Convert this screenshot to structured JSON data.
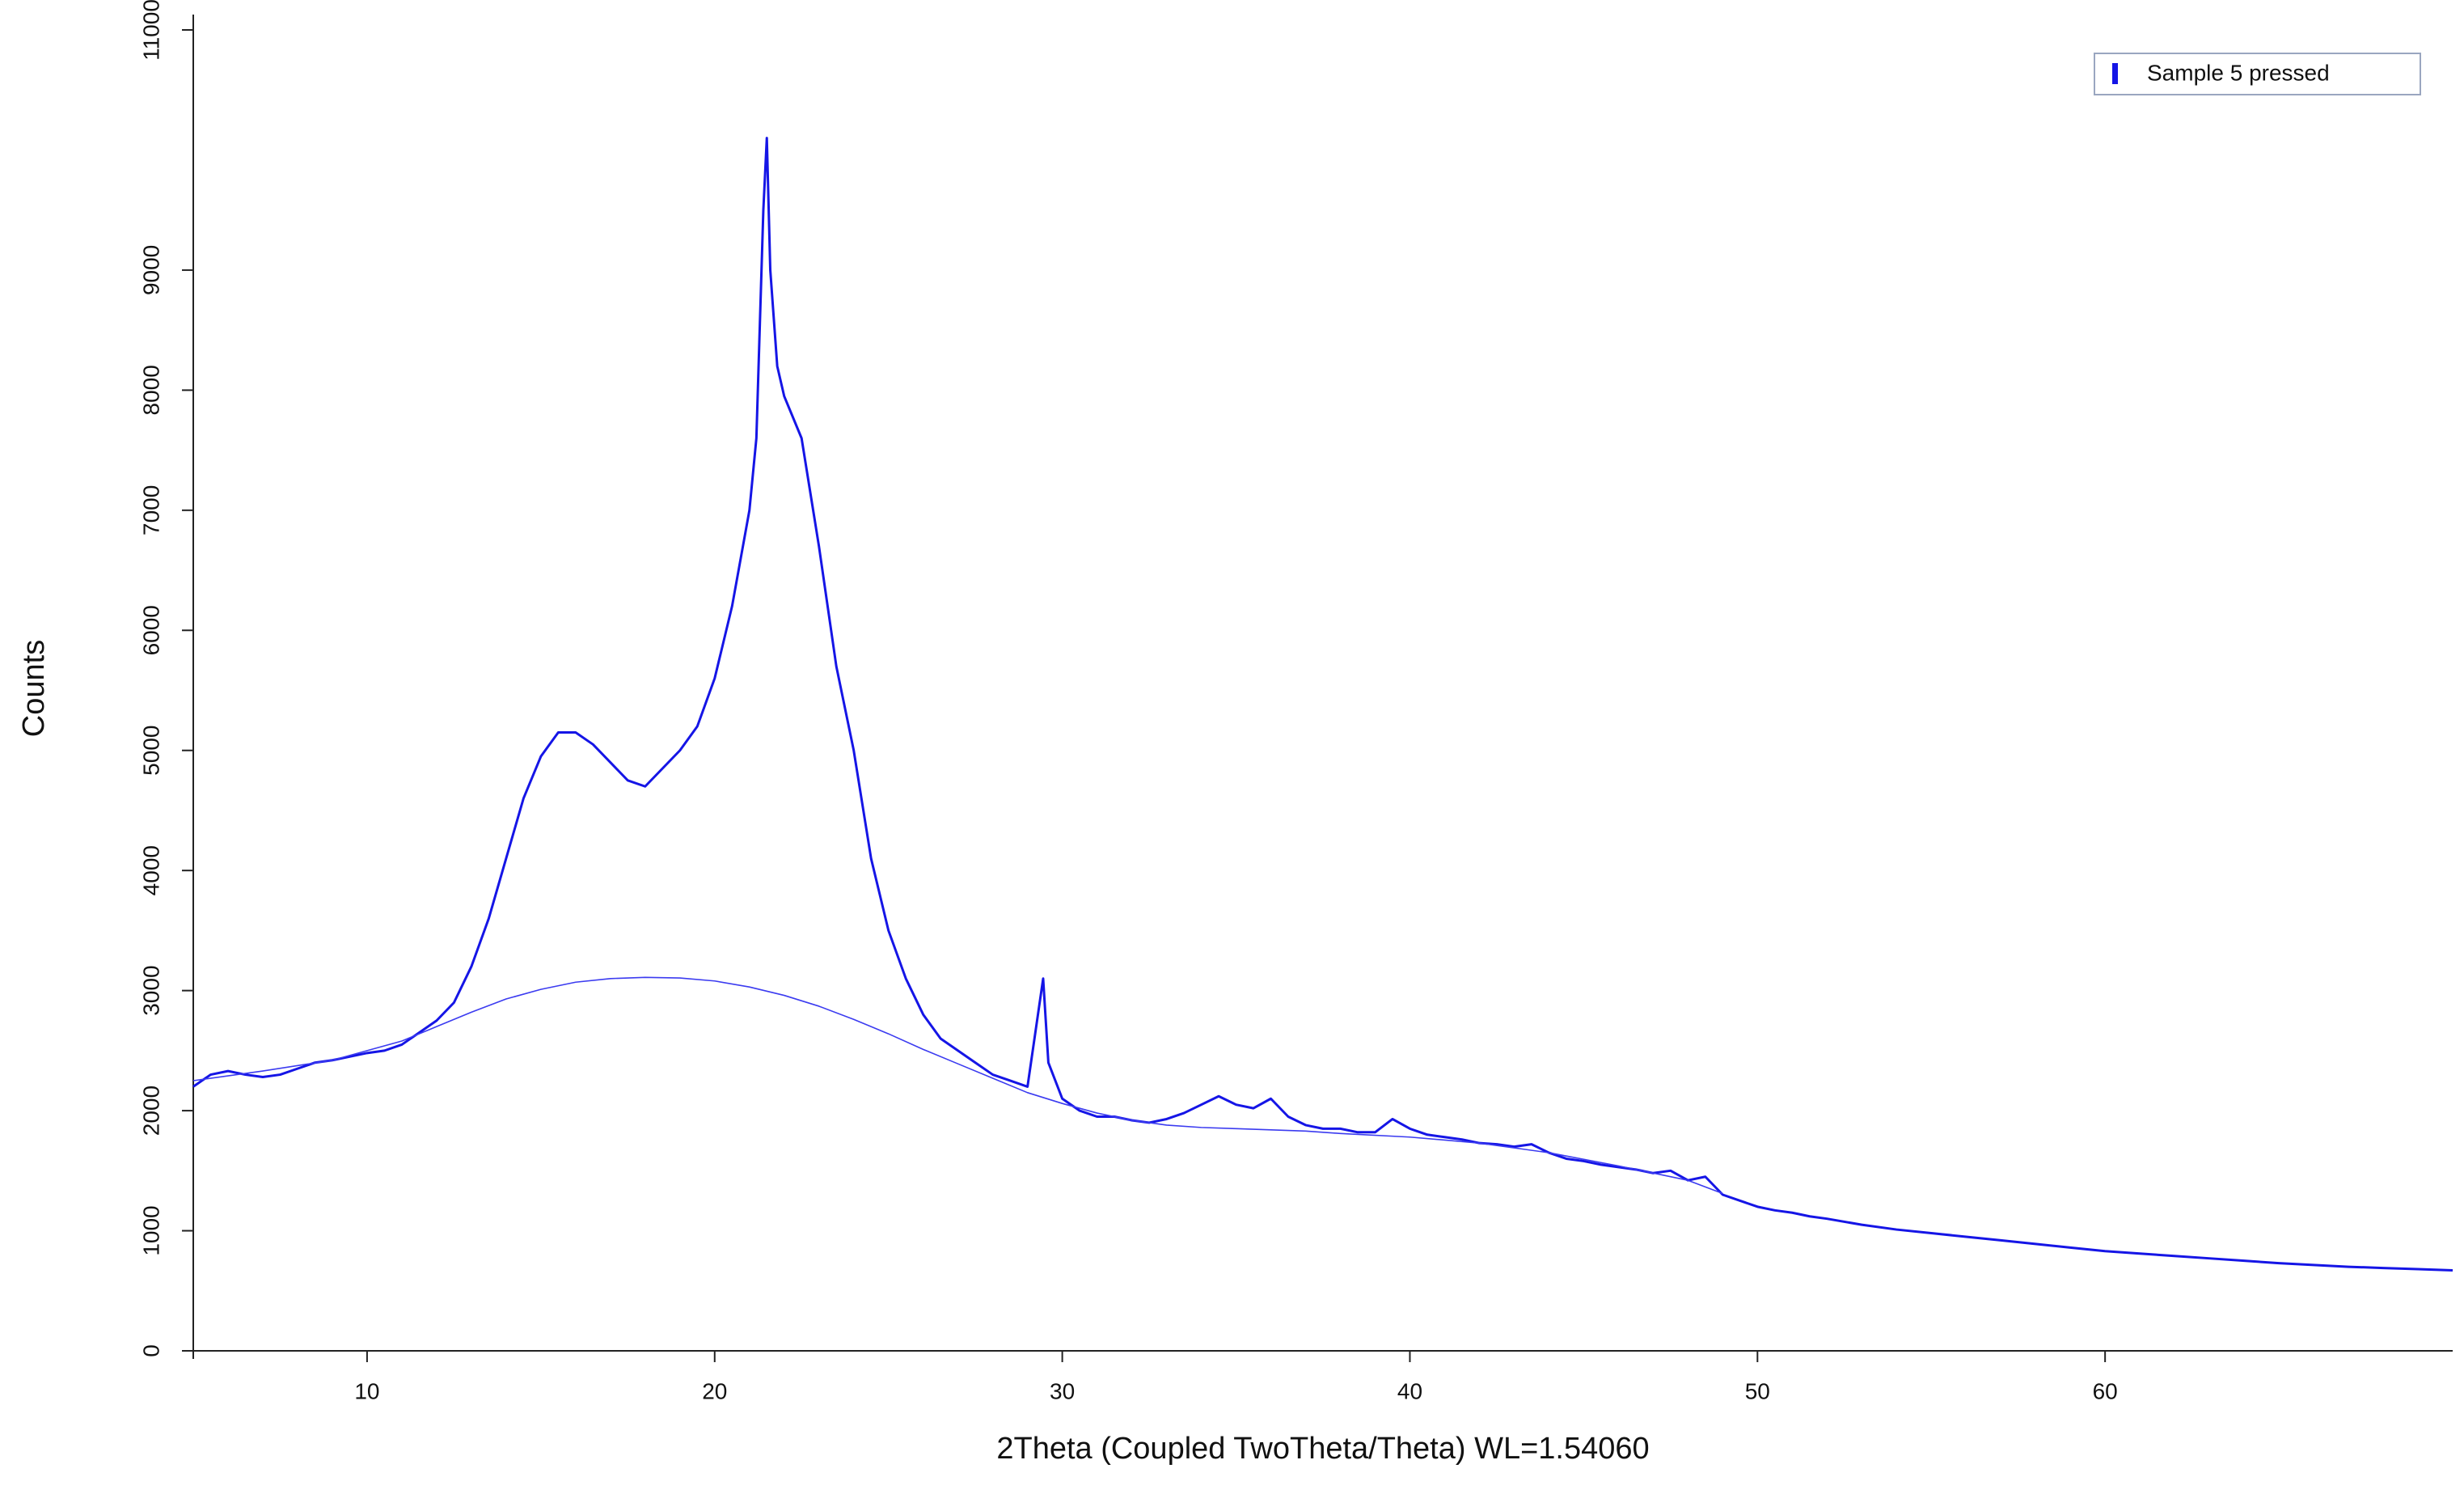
{
  "chart_data": {
    "type": "line",
    "xlabel": "2Theta (Coupled TwoTheta/Theta) WL=1.54060",
    "ylabel": "Counts",
    "xlim": [
      5,
      70
    ],
    "ylim": [
      0,
      11000
    ],
    "xticks": [
      10,
      20,
      30,
      40,
      50,
      60
    ],
    "yticks": [
      0,
      1000,
      2000,
      3000,
      4000,
      5000,
      6000,
      7000,
      8000,
      9000,
      11000
    ],
    "legend": "upper right",
    "x": [
      5,
      5.5,
      6,
      6.5,
      7,
      7.5,
      8,
      8.5,
      9,
      9.5,
      10,
      10.5,
      11,
      11.5,
      12,
      12.5,
      13,
      13.5,
      14,
      14.5,
      15,
      15.5,
      16,
      16.5,
      17,
      17.5,
      18,
      18.5,
      19,
      19.5,
      20,
      20.5,
      21,
      21.2,
      21.4,
      21.5,
      21.6,
      21.8,
      22,
      22.5,
      23,
      23.5,
      24,
      24.5,
      25,
      25.5,
      26,
      26.5,
      27,
      27.5,
      28,
      28.5,
      29,
      29.3,
      29.45,
      29.6,
      30,
      30.5,
      31,
      31.5,
      32,
      32.5,
      33,
      33.5,
      34,
      34.5,
      35,
      35.5,
      36,
      36.5,
      37,
      37.5,
      38,
      38.5,
      39,
      39.5,
      40,
      40.5,
      41,
      41.5,
      42,
      42.5,
      43,
      43.5,
      44,
      44.5,
      45,
      45.5,
      46,
      46.5,
      47,
      47.5,
      48,
      48.5,
      49,
      49.5,
      50,
      50.5,
      51,
      51.5,
      52,
      53,
      54,
      55,
      56,
      57,
      58,
      59,
      60,
      61,
      62,
      63,
      64,
      65,
      66,
      67,
      68,
      69,
      70
    ],
    "series": [
      {
        "name": "Sample 5 pressed",
        "color": "#1515e6",
        "values": [
          2200,
          2300,
          2330,
          2300,
          2280,
          2300,
          2350,
          2400,
          2420,
          2450,
          2480,
          2500,
          2550,
          2650,
          2750,
          2900,
          3200,
          3600,
          4100,
          4600,
          4950,
          5150,
          5150,
          5050,
          4900,
          4750,
          4700,
          4850,
          5000,
          5200,
          5600,
          6200,
          7000,
          7600,
          9500,
          10100,
          9000,
          8200,
          7950,
          7600,
          6700,
          5700,
          5000,
          4100,
          3500,
          3100,
          2800,
          2600,
          2500,
          2400,
          2300,
          2250,
          2200,
          2800,
          3100,
          2400,
          2100,
          2000,
          1950,
          1950,
          1920,
          1900,
          1930,
          1980,
          2050,
          2120,
          2050,
          2020,
          2100,
          1950,
          1880,
          1850,
          1850,
          1820,
          1820,
          1930,
          1850,
          1800,
          1780,
          1760,
          1730,
          1720,
          1700,
          1720,
          1650,
          1600,
          1580,
          1550,
          1530,
          1510,
          1480,
          1500,
          1420,
          1450,
          1300,
          1250,
          1200,
          1170,
          1150,
          1120,
          1100,
          1050,
          1010,
          980,
          950,
          920,
          890,
          860,
          830,
          810,
          790,
          770,
          750,
          730,
          715,
          700,
          690,
          680,
          670
        ]
      },
      {
        "color": "#3b3bf0",
        "x": [
          5,
          7,
          9,
          11,
          12,
          13,
          14,
          15,
          16,
          17,
          18,
          19,
          20,
          21,
          22,
          23,
          24,
          25,
          26,
          27,
          28,
          29,
          30,
          31,
          32,
          33,
          34,
          35,
          36,
          37,
          38,
          40,
          42,
          44,
          46,
          48,
          49
        ],
        "values": [
          2250,
          2330,
          2420,
          2580,
          2700,
          2820,
          2930,
          3010,
          3070,
          3100,
          3110,
          3105,
          3080,
          3030,
          2960,
          2870,
          2760,
          2640,
          2510,
          2390,
          2270,
          2150,
          2060,
          1980,
          1920,
          1880,
          1860,
          1850,
          1840,
          1830,
          1810,
          1780,
          1730,
          1650,
          1540,
          1420,
          1310
        ]
      }
    ]
  }
}
